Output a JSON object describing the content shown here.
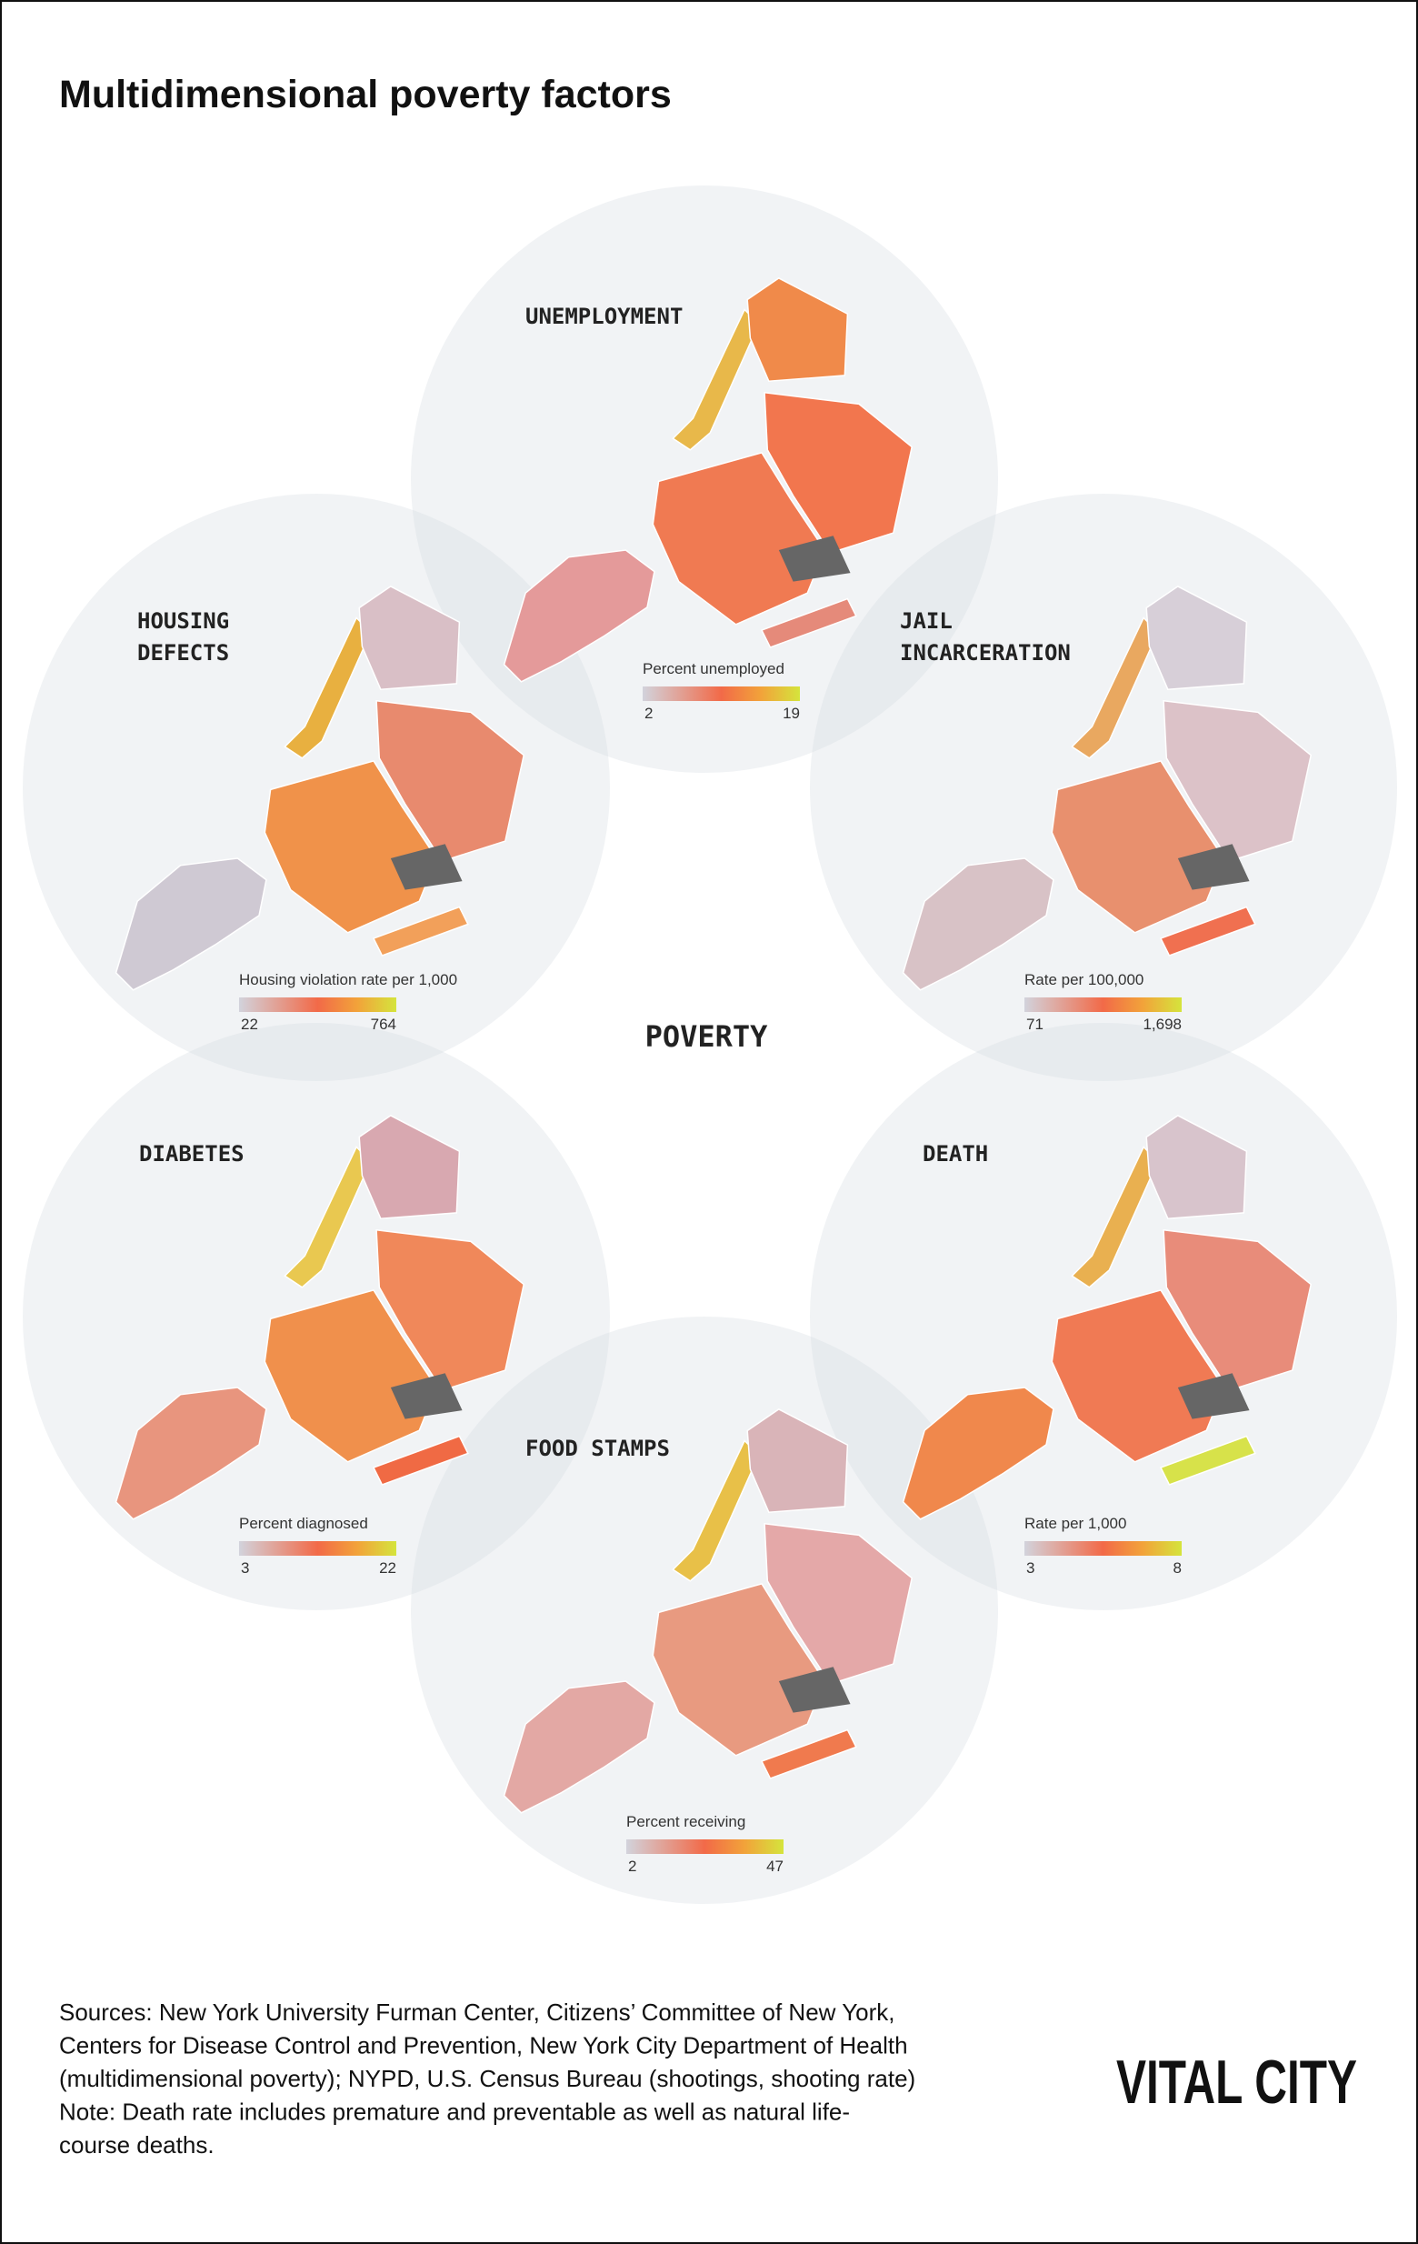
{
  "title": "Multidimensional poverty factors",
  "center_label": "POVERTY",
  "panels": [
    {
      "label_lines": [
        "UNEMPLOYMENT"
      ],
      "legend": {
        "title": "Percent unemployed",
        "min": "2",
        "max": "19"
      }
    },
    {
      "label_lines": [
        "HOUSING",
        "DEFECTS"
      ],
      "legend": {
        "title": "Housing violation rate per 1,000",
        "min": "22",
        "max": "764"
      }
    },
    {
      "label_lines": [
        "JAIL",
        "INCARCERATION"
      ],
      "legend": {
        "title": "Rate per 100,000",
        "min": "71",
        "max": "1,698"
      }
    },
    {
      "label_lines": [
        "DIABETES"
      ],
      "legend": {
        "title": "Percent diagnosed",
        "min": "3",
        "max": "22"
      }
    },
    {
      "label_lines": [
        "DEATH"
      ],
      "legend": {
        "title": "Rate per 1,000",
        "min": "3",
        "max": "8"
      }
    },
    {
      "label_lines": [
        "FOOD STAMPS"
      ],
      "legend": {
        "title": "Percent receiving",
        "min": "2",
        "max": "47"
      }
    }
  ],
  "sources": [
    "Sources: New York University Furman Center, Citizens’ Committee of New York,",
    "Centers for Disease Control and Prevention, New York City Department of Health",
    "(multidimensional poverty); NYPD, U.S. Census Bureau (shootings, shooting rate)",
    "Note: Death rate includes premature and preventable as well as natural life-",
    "course deaths."
  ],
  "logo": "VITAL CITY"
}
